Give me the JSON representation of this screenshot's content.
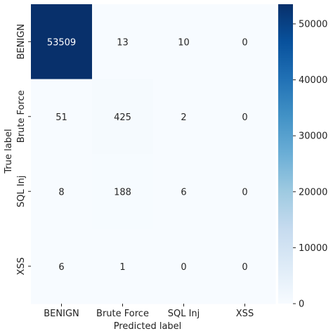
{
  "chart_data": {
    "type": "heatmap",
    "title": "",
    "xlabel": "Predicted label",
    "ylabel": "True label",
    "x_categories": [
      "BENIGN",
      "Brute Force",
      "SQL Inj",
      "XSS"
    ],
    "y_categories": [
      "BENIGN",
      "Brute Force",
      "SQL Inj",
      "XSS"
    ],
    "values": [
      [
        53509,
        13,
        10,
        0
      ],
      [
        51,
        425,
        2,
        0
      ],
      [
        8,
        188,
        6,
        0
      ],
      [
        6,
        1,
        0,
        0
      ]
    ],
    "colorbar": {
      "range": [
        0,
        53509
      ],
      "ticks": [
        0,
        10000,
        20000,
        30000,
        40000,
        50000
      ],
      "tick_labels": [
        "0",
        "10000",
        "20000",
        "30000",
        "40000",
        "50000"
      ],
      "colors": [
        "#f7fbff",
        "#deebf7",
        "#c6dbef",
        "#9ecae1",
        "#6baed6",
        "#4292c6",
        "#2171b5",
        "#08519c",
        "#08306b"
      ]
    },
    "grid": false,
    "legend": "colorbar-right"
  }
}
